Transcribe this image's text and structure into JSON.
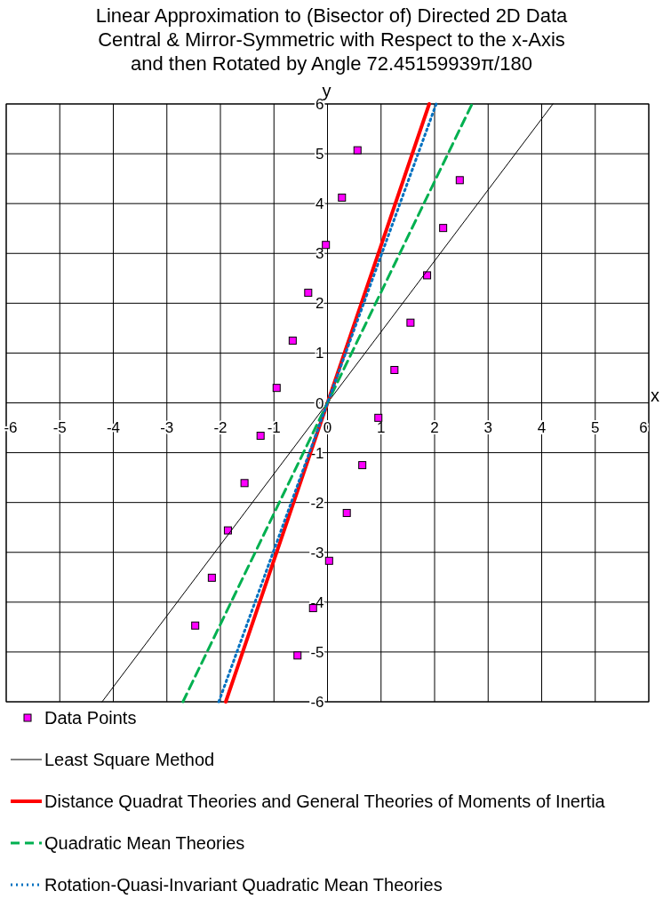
{
  "chart_data": {
    "type": "scatter",
    "title": "Linear Approximation to (Bisector of) Directed 2D Data\nCentral & Mirror-Symmetric with Respect to the x-Axis\nand then Rotated by Angle 72.45159939π/180",
    "xlabel": "x",
    "ylabel": "y",
    "xlim": [
      -6,
      6
    ],
    "ylim": [
      -6,
      6
    ],
    "xticks": [
      -6,
      -5,
      -4,
      -3,
      -2,
      -1,
      0,
      1,
      2,
      3,
      4,
      5,
      6
    ],
    "yticks": [
      -6,
      -5,
      -4,
      -3,
      -2,
      -1,
      0,
      1,
      2,
      3,
      4,
      5,
      6
    ],
    "grid": true,
    "legend": "bottom",
    "series": [
      {
        "name": "Data Points",
        "type": "scatter",
        "color": "#ff00ff",
        "marker": "square",
        "x": [
          0.56,
          0.27,
          -0.03,
          -0.36,
          -0.65,
          -0.95,
          -1.25,
          -1.55,
          -1.86,
          -2.16,
          -2.47,
          2.47,
          2.16,
          1.86,
          1.55,
          1.25,
          0.95,
          0.65,
          0.36,
          0.03,
          -0.27,
          -0.56
        ],
        "values": [
          5.07,
          4.12,
          3.17,
          2.21,
          1.25,
          0.3,
          -0.66,
          -1.61,
          -2.56,
          -3.51,
          -4.47,
          4.47,
          3.51,
          2.56,
          1.61,
          0.66,
          -0.3,
          -1.25,
          -2.21,
          -3.17,
          -4.12,
          -5.07
        ]
      },
      {
        "name": "Least Square Method",
        "type": "line",
        "color": "#000000",
        "marker": "none",
        "line_style": "solid",
        "x": [
          -4.21,
          4.21
        ],
        "values": [
          -6,
          6
        ]
      },
      {
        "name": "Distance Quadrat Theories and General Theories of Moments of Inertia",
        "type": "line",
        "color": "#ff0000",
        "marker": "none",
        "line_style": "solid",
        "x": [
          -1.9,
          1.9
        ],
        "values": [
          -6,
          6
        ]
      },
      {
        "name": "Quadratic Mean Theories",
        "type": "line",
        "color": "#00b050",
        "marker": "none",
        "line_style": "dashed",
        "x": [
          -2.7,
          2.7
        ],
        "values": [
          -6,
          6
        ]
      },
      {
        "name": "Rotation-Quasi-Invariant Quadratic Mean Theories",
        "type": "line",
        "color": "#0070c0",
        "marker": "none",
        "line_style": "dotted",
        "x": [
          -2.03,
          2.03
        ],
        "values": [
          -6,
          6
        ]
      }
    ]
  }
}
